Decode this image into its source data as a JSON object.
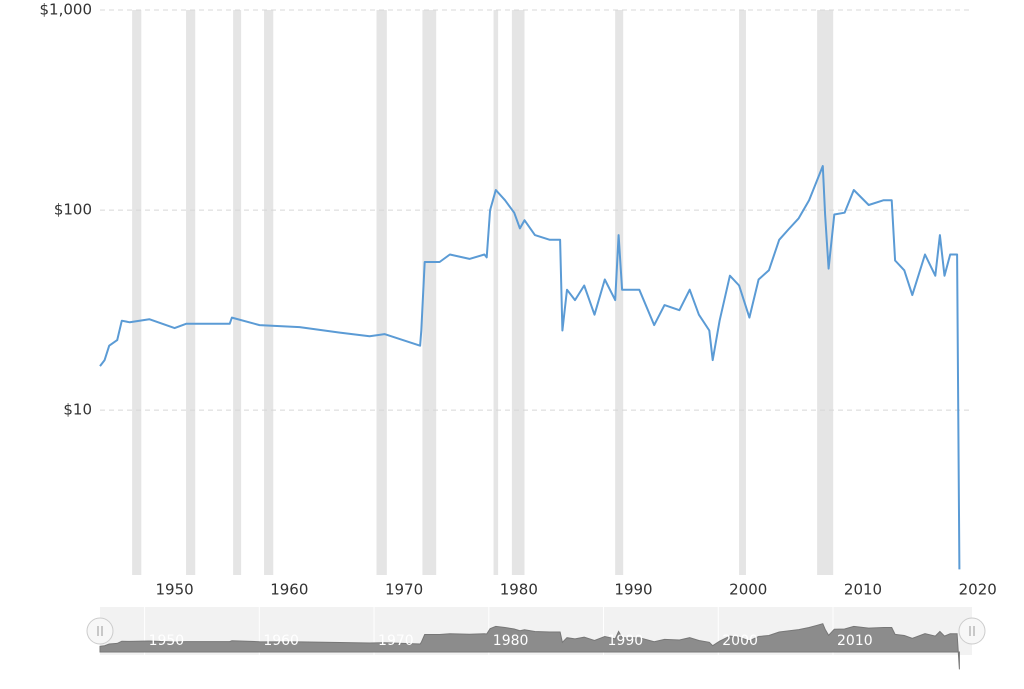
{
  "chart_data": {
    "type": "line",
    "log_y": true,
    "grid": true,
    "ylim": [
      1.5,
      1000
    ],
    "yticks": [
      {
        "value": 1000,
        "label": "$1,000"
      },
      {
        "value": 100,
        "label": "$100"
      },
      {
        "value": 10,
        "label": "$10"
      }
    ],
    "xlim": [
      1943.5,
      2019.5
    ],
    "xticks": [
      1950,
      1960,
      1970,
      1980,
      1990,
      2000,
      2010,
      2020
    ],
    "recession_color": "#e5e5e5",
    "recessions": [
      [
        1946.3,
        1947.1
      ],
      [
        1951.0,
        1951.8
      ],
      [
        1955.1,
        1955.8
      ],
      [
        1957.8,
        1958.6
      ],
      [
        1967.6,
        1968.5
      ],
      [
        1971.6,
        1972.8
      ],
      [
        1977.8,
        1978.2
      ],
      [
        1979.4,
        1980.5
      ],
      [
        1988.4,
        1989.1
      ],
      [
        1999.2,
        1999.8
      ],
      [
        2006.0,
        2007.4
      ]
    ],
    "x": [
      1943.5,
      1943.9,
      1944.3,
      1945.0,
      1945.4,
      1946.1,
      1947.8,
      1950.0,
      1951.0,
      1954.8,
      1955.0,
      1957.4,
      1960.9,
      1964.4,
      1967.0,
      1968.3,
      1971.4,
      1971.5,
      1971.8,
      1973.1,
      1974.0,
      1975.7,
      1977.0,
      1977.2,
      1977.5,
      1978.0,
      1978.8,
      1979.6,
      1980.1,
      1980.5,
      1981.4,
      1982.7,
      1983.6,
      1983.8,
      1984.2,
      1984.9,
      1985.7,
      1986.6,
      1987.5,
      1988.4,
      1988.7,
      1989.0,
      1990.5,
      1991.8,
      1992.7,
      1994.0,
      1994.9,
      1995.7,
      1996.6,
      1996.9,
      1997.5,
      1998.4,
      1999.2,
      2000.1,
      2000.9,
      2001.8,
      2002.7,
      2003.5,
      2004.4,
      2005.3,
      2006.0,
      2006.5,
      2006.7,
      2007.0,
      2007.5,
      2008.4,
      2009.2,
      2010.5,
      2011.8,
      2012.5,
      2012.8,
      2013.6,
      2014.3,
      2015.4,
      2016.3,
      2016.7,
      2017.1,
      2017.6,
      2018.2,
      2018.4
    ],
    "series": [
      {
        "color": "#5b9bd5",
        "values": [
          16.6,
          17.8,
          21,
          22.4,
          28,
          27.5,
          28.5,
          25.7,
          27,
          27,
          29,
          26.6,
          26,
          24.4,
          23.4,
          24,
          21,
          25,
          55,
          55,
          60,
          57,
          60,
          58,
          100,
          126,
          112,
          97,
          81,
          89,
          75,
          71,
          71,
          25,
          40,
          35.5,
          42,
          30,
          45,
          35.5,
          75,
          40,
          40,
          26.6,
          33.5,
          31.6,
          40,
          30,
          25,
          17.8,
          28,
          47,
          42,
          29,
          45,
          50,
          71,
          80,
          91,
          112,
          141,
          166,
          95,
          51,
          95,
          97,
          126,
          106,
          112,
          112,
          56,
          50,
          37.6,
          60,
          47,
          75,
          47,
          60,
          60,
          1.6
        ]
      }
    ]
  }
}
